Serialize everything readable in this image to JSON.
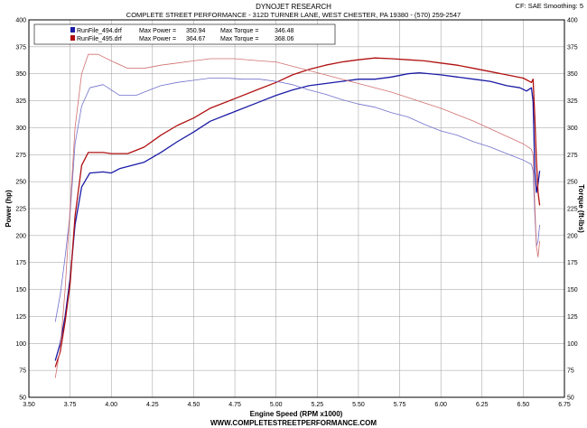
{
  "header": {
    "title": "DYNOJET RESEARCH",
    "subtitle": "COMPLETE STREET PERFORMANCE - 312D TURNER LANE, WEST CHESTER, PA 19380  - (570) 259-2547",
    "settings": "CF: SAE  Smoothing: 5"
  },
  "footer": {
    "website": "WWW.COMPLETESTREETPERFORMANCE.COM"
  },
  "chart_data": {
    "type": "line",
    "xlabel": "Engine Speed (RPM x1000)",
    "ylabel": "Power (hp)",
    "y2label": "Torque (ft-lbs)",
    "xlim": [
      3.5,
      6.75
    ],
    "ylim": [
      50,
      400
    ],
    "y2lim": [
      50,
      400
    ],
    "xticks": [
      "3.50",
      "3.75",
      "4.00",
      "4.25",
      "4.50",
      "4.75",
      "5.00",
      "5.25",
      "5.50",
      "5.75",
      "6.00",
      "6.25",
      "6.50",
      "6.75"
    ],
    "yticks": [
      "50",
      "75",
      "100",
      "125",
      "150",
      "175",
      "200",
      "225",
      "250",
      "275",
      "300",
      "325",
      "350",
      "375",
      "400"
    ],
    "grid": true,
    "legend": [
      {
        "file": "RunFile_494.drf",
        "max_power_label": "Max Power =",
        "max_power": "350.94",
        "max_torque_label": "Max Torque =",
        "max_torque": "346.48",
        "color": "#1a1aa6"
      },
      {
        "file": "RunFile_495.drf",
        "max_power_label": "Max Power =",
        "max_power": "364.67",
        "max_torque_label": "Max Torque =",
        "max_torque": "368.06",
        "color": "#b01010"
      }
    ],
    "series": [
      {
        "run": "494",
        "measure": "power",
        "color": "#1a1aa6",
        "width": 1.3,
        "points": [
          [
            3.66,
            84
          ],
          [
            3.69,
            100
          ],
          [
            3.72,
            125
          ],
          [
            3.75,
            160
          ],
          [
            3.78,
            210
          ],
          [
            3.82,
            245
          ],
          [
            3.87,
            258
          ],
          [
            3.95,
            259
          ],
          [
            4.0,
            258
          ],
          [
            4.05,
            262
          ],
          [
            4.2,
            268
          ],
          [
            4.3,
            277
          ],
          [
            4.4,
            287
          ],
          [
            4.5,
            296
          ],
          [
            4.6,
            306
          ],
          [
            4.75,
            315
          ],
          [
            4.9,
            324
          ],
          [
            5.0,
            330
          ],
          [
            5.1,
            335
          ],
          [
            5.2,
            339
          ],
          [
            5.3,
            341
          ],
          [
            5.4,
            343
          ],
          [
            5.5,
            345
          ],
          [
            5.6,
            345
          ],
          [
            5.7,
            347
          ],
          [
            5.8,
            350
          ],
          [
            5.87,
            350.9
          ],
          [
            6.0,
            349
          ],
          [
            6.1,
            347
          ],
          [
            6.2,
            345
          ],
          [
            6.3,
            343
          ],
          [
            6.4,
            339
          ],
          [
            6.48,
            337
          ],
          [
            6.52,
            334
          ],
          [
            6.55,
            337
          ],
          [
            6.56,
            324
          ],
          [
            6.57,
            260
          ],
          [
            6.58,
            240
          ],
          [
            6.59,
            248
          ],
          [
            6.6,
            260
          ]
        ]
      },
      {
        "run": "495",
        "measure": "power",
        "color": "#b01010",
        "width": 1.3,
        "points": [
          [
            3.66,
            78
          ],
          [
            3.69,
            92
          ],
          [
            3.72,
            120
          ],
          [
            3.75,
            155
          ],
          [
            3.78,
            218
          ],
          [
            3.82,
            265
          ],
          [
            3.86,
            277
          ],
          [
            3.95,
            277
          ],
          [
            4.0,
            276
          ],
          [
            4.1,
            276
          ],
          [
            4.2,
            282
          ],
          [
            4.3,
            293
          ],
          [
            4.4,
            302
          ],
          [
            4.5,
            309
          ],
          [
            4.6,
            318
          ],
          [
            4.75,
            327
          ],
          [
            4.9,
            336
          ],
          [
            5.0,
            342
          ],
          [
            5.1,
            349
          ],
          [
            5.2,
            354
          ],
          [
            5.3,
            358
          ],
          [
            5.4,
            361
          ],
          [
            5.5,
            363
          ],
          [
            5.6,
            364.7
          ],
          [
            5.7,
            364
          ],
          [
            5.8,
            363
          ],
          [
            5.9,
            362
          ],
          [
            6.0,
            360
          ],
          [
            6.1,
            358
          ],
          [
            6.2,
            355
          ],
          [
            6.3,
            352
          ],
          [
            6.4,
            349
          ],
          [
            6.5,
            346
          ],
          [
            6.55,
            342
          ],
          [
            6.56,
            345
          ],
          [
            6.57,
            310
          ],
          [
            6.58,
            270
          ],
          [
            6.59,
            240
          ],
          [
            6.6,
            228
          ]
        ]
      },
      {
        "run": "494",
        "measure": "torque",
        "color": "#7070cc",
        "width": 0.8,
        "points": [
          [
            3.66,
            120
          ],
          [
            3.69,
            145
          ],
          [
            3.72,
            180
          ],
          [
            3.75,
            220
          ],
          [
            3.78,
            285
          ],
          [
            3.82,
            320
          ],
          [
            3.87,
            337
          ],
          [
            3.95,
            340
          ],
          [
            4.0,
            335
          ],
          [
            4.05,
            330
          ],
          [
            4.15,
            330
          ],
          [
            4.2,
            333
          ],
          [
            4.3,
            339
          ],
          [
            4.4,
            342
          ],
          [
            4.5,
            344
          ],
          [
            4.6,
            346
          ],
          [
            4.7,
            346
          ],
          [
            4.8,
            345
          ],
          [
            4.9,
            345
          ],
          [
            5.0,
            343
          ],
          [
            5.1,
            340
          ],
          [
            5.2,
            335
          ],
          [
            5.3,
            331
          ],
          [
            5.4,
            326
          ],
          [
            5.5,
            322
          ],
          [
            5.6,
            319
          ],
          [
            5.7,
            314
          ],
          [
            5.8,
            310
          ],
          [
            5.9,
            303
          ],
          [
            6.0,
            297
          ],
          [
            6.1,
            293
          ],
          [
            6.2,
            287
          ],
          [
            6.3,
            282
          ],
          [
            6.4,
            276
          ],
          [
            6.5,
            270
          ],
          [
            6.55,
            266
          ],
          [
            6.56,
            260
          ],
          [
            6.57,
            220
          ],
          [
            6.58,
            190
          ],
          [
            6.59,
            195
          ],
          [
            6.6,
            210
          ]
        ]
      },
      {
        "run": "495",
        "measure": "torque",
        "color": "#d07070",
        "width": 0.8,
        "points": [
          [
            3.66,
            68
          ],
          [
            3.69,
            95
          ],
          [
            3.72,
            150
          ],
          [
            3.75,
            225
          ],
          [
            3.78,
            300
          ],
          [
            3.82,
            350
          ],
          [
            3.86,
            368
          ],
          [
            3.92,
            368
          ],
          [
            4.0,
            362
          ],
          [
            4.1,
            355
          ],
          [
            4.2,
            355
          ],
          [
            4.3,
            358
          ],
          [
            4.4,
            360
          ],
          [
            4.5,
            362
          ],
          [
            4.6,
            364
          ],
          [
            4.75,
            364
          ],
          [
            4.9,
            362
          ],
          [
            5.0,
            361
          ],
          [
            5.1,
            357
          ],
          [
            5.2,
            353
          ],
          [
            5.3,
            349
          ],
          [
            5.4,
            345
          ],
          [
            5.5,
            341
          ],
          [
            5.6,
            337
          ],
          [
            5.7,
            333
          ],
          [
            5.8,
            328
          ],
          [
            5.9,
            323
          ],
          [
            6.0,
            318
          ],
          [
            6.1,
            312
          ],
          [
            6.2,
            306
          ],
          [
            6.3,
            299
          ],
          [
            6.4,
            292
          ],
          [
            6.5,
            285
          ],
          [
            6.55,
            280
          ],
          [
            6.56,
            275
          ],
          [
            6.57,
            230
          ],
          [
            6.58,
            190
          ],
          [
            6.59,
            180
          ],
          [
            6.6,
            195
          ]
        ]
      }
    ]
  }
}
